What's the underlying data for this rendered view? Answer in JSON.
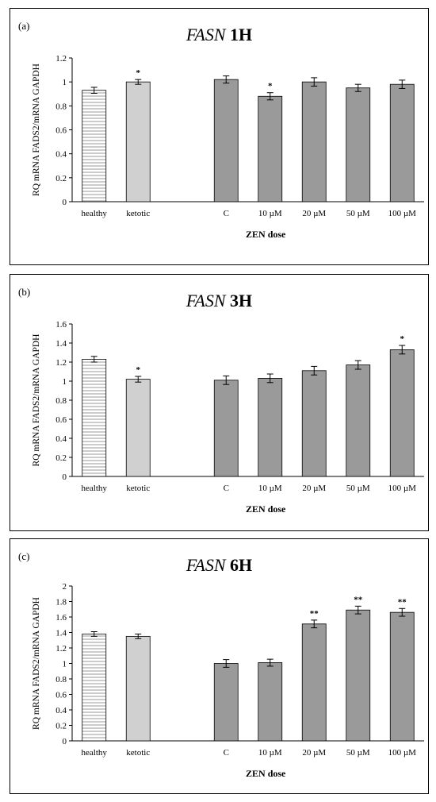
{
  "colors": {
    "healthy_fill": "#ffffff",
    "ketotic_fill": "#d0d0d0",
    "zen_fill": "#9a9a9a",
    "bar_stroke": "#000000",
    "axis": "#000000"
  },
  "chart_data": [
    {
      "type": "bar",
      "panel_label": "(a)",
      "title": "FASN",
      "title_time": "1H",
      "ylabel": "RQ mRNA FADS2/mRNA GAPDH",
      "xlabel": "ZEN dose",
      "ylim": [
        0,
        1.2
      ],
      "yticks": [
        0,
        0.2,
        0.4,
        0.6,
        0.8,
        1,
        1.2
      ],
      "categories": [
        "healthy",
        "ketotic",
        "C",
        "10 µM",
        "20 µM",
        "50 µM",
        "100 µM"
      ],
      "values": [
        0.93,
        1.0,
        1.02,
        0.88,
        1.0,
        0.95,
        0.98
      ],
      "errors": [
        0.025,
        0.02,
        0.03,
        0.03,
        0.035,
        0.03,
        0.035
      ],
      "significance": [
        "",
        "*",
        "",
        "*",
        "",
        "",
        ""
      ],
      "grid": false,
      "legend": false
    },
    {
      "type": "bar",
      "panel_label": "(b)",
      "title": "FASN",
      "title_time": "3H",
      "ylabel": "RQ mRNA FADS2/mRNA GAPDH",
      "xlabel": "ZEN dose",
      "ylim": [
        0,
        1.6
      ],
      "yticks": [
        0,
        0.2,
        0.4,
        0.6,
        0.8,
        1,
        1.2,
        1.4,
        1.6
      ],
      "categories": [
        "healthy",
        "ketotic",
        "C",
        "10 µM",
        "20 µM",
        "50 µM",
        "100 µM"
      ],
      "values": [
        1.23,
        1.02,
        1.01,
        1.03,
        1.11,
        1.17,
        1.33
      ],
      "errors": [
        0.03,
        0.03,
        0.045,
        0.045,
        0.045,
        0.045,
        0.045
      ],
      "significance": [
        "",
        "*",
        "",
        "",
        "",
        "",
        "*"
      ],
      "grid": false,
      "legend": false
    },
    {
      "type": "bar",
      "panel_label": "(c)",
      "title": "FASN",
      "title_time": "6H",
      "ylabel": "RQ mRNA FADS2/mRNA GAPDH",
      "xlabel": "ZEN dose",
      "ylim": [
        0,
        2
      ],
      "yticks": [
        0,
        0.2,
        0.4,
        0.6,
        0.8,
        1,
        1.2,
        1.4,
        1.6,
        1.8,
        2
      ],
      "categories": [
        "healthy",
        "ketotic",
        "C",
        "10 µM",
        "20 µM",
        "50 µM",
        "100 µM"
      ],
      "values": [
        1.38,
        1.35,
        1.0,
        1.01,
        1.51,
        1.69,
        1.66
      ],
      "errors": [
        0.03,
        0.03,
        0.05,
        0.045,
        0.05,
        0.05,
        0.05
      ],
      "significance": [
        "",
        "",
        "",
        "",
        "**",
        "**",
        "**"
      ],
      "grid": false,
      "legend": false
    }
  ]
}
